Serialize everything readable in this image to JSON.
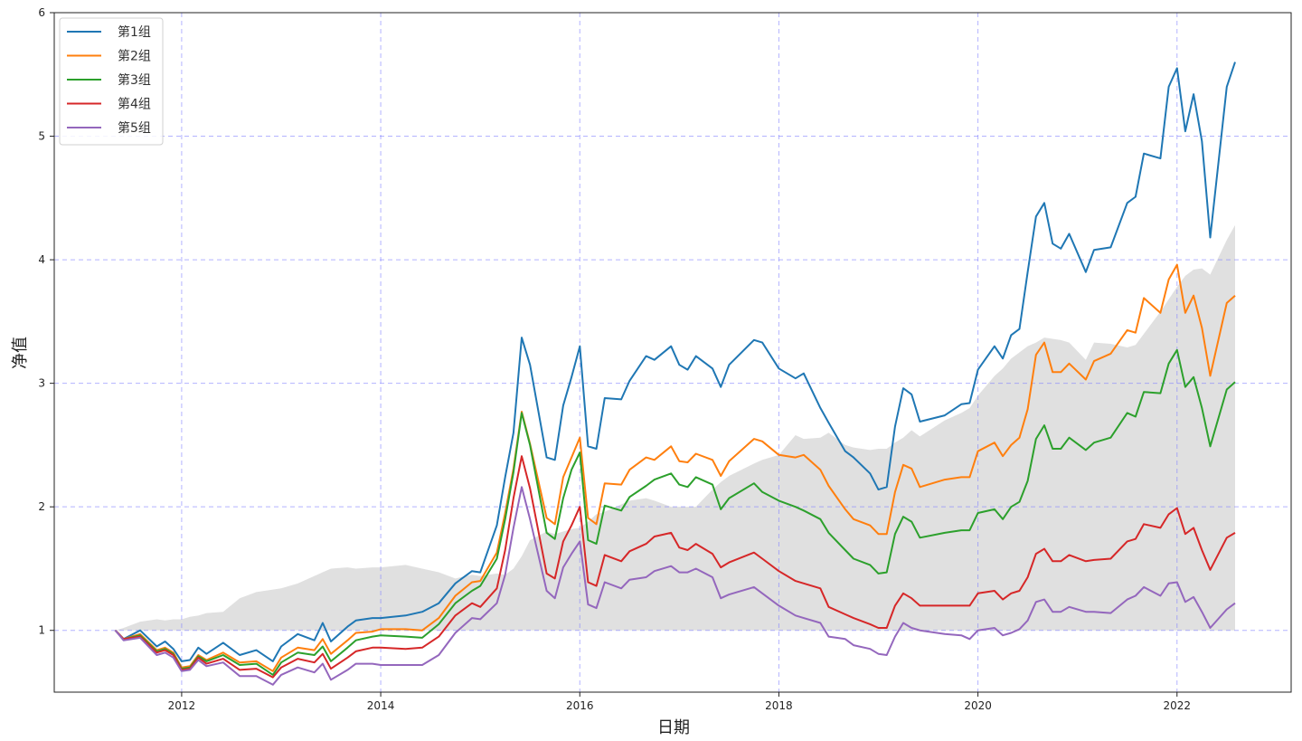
{
  "chart_data": {
    "type": "line",
    "title": "",
    "xlabel": "日期",
    "ylabel": "净值",
    "xlim": [
      "2010-10",
      "2023-03"
    ],
    "ylim": [
      0.5,
      6
    ],
    "x_ticks": [
      "2012",
      "2014",
      "2016",
      "2018",
      "2020",
      "2022"
    ],
    "y_ticks": [
      "1",
      "2",
      "3",
      "4",
      "5",
      "6"
    ],
    "grid": true,
    "grid_color": "#8080ff",
    "legend_placement": "top-left",
    "x": [
      "2011-05",
      "2011-06",
      "2011-08",
      "2011-10",
      "2011-11",
      "2011-12",
      "2012-01",
      "2012-02",
      "2012-03",
      "2012-04",
      "2012-06",
      "2012-08",
      "2012-10",
      "2012-12",
      "2013-01",
      "2013-03",
      "2013-05",
      "2013-06",
      "2013-07",
      "2013-09",
      "2013-10",
      "2013-12",
      "2014-01",
      "2014-04",
      "2014-06",
      "2014-08",
      "2014-10",
      "2014-12",
      "2015-01",
      "2015-03",
      "2015-04",
      "2015-05",
      "2015-06",
      "2015-07",
      "2015-09",
      "2015-10",
      "2015-11",
      "2015-12",
      "2016-01",
      "2016-02",
      "2016-03",
      "2016-04",
      "2016-06",
      "2016-07",
      "2016-09",
      "2016-10",
      "2016-12",
      "2017-01",
      "2017-02",
      "2017-03",
      "2017-05",
      "2017-06",
      "2017-07",
      "2017-10",
      "2017-11",
      "2018-01",
      "2018-03",
      "2018-04",
      "2018-06",
      "2018-07",
      "2018-09",
      "2018-10",
      "2018-12",
      "2019-01",
      "2019-02",
      "2019-03",
      "2019-04",
      "2019-05",
      "2019-06",
      "2019-09",
      "2019-11",
      "2019-12",
      "2020-01",
      "2020-03",
      "2020-04",
      "2020-05",
      "2020-06",
      "2020-07",
      "2020-08",
      "2020-09",
      "2020-10",
      "2020-11",
      "2020-12",
      "2021-02",
      "2021-03",
      "2021-05",
      "2021-07",
      "2021-08",
      "2021-09",
      "2021-11",
      "2021-12",
      "2022-01",
      "2022-02",
      "2022-03",
      "2022-04",
      "2022-05",
      "2022-07",
      "2022-08"
    ],
    "shaded_area": {
      "color": "#e0e0e0",
      "baseline": 1,
      "values": [
        1.0,
        1.02,
        1.07,
        1.09,
        1.08,
        1.09,
        1.09,
        1.11,
        1.12,
        1.14,
        1.15,
        1.26,
        1.31,
        1.33,
        1.34,
        1.38,
        1.44,
        1.47,
        1.5,
        1.51,
        1.5,
        1.51,
        1.51,
        1.53,
        1.5,
        1.47,
        1.42,
        1.45,
        1.44,
        1.46,
        1.45,
        1.5,
        1.6,
        1.73,
        1.8,
        1.78,
        1.8,
        1.82,
        1.83,
        1.88,
        1.94,
        1.96,
        2.02,
        2.05,
        2.07,
        2.05,
        2.0,
        2.0,
        2.0,
        2.0,
        2.14,
        2.2,
        2.25,
        2.35,
        2.38,
        2.42,
        2.58,
        2.55,
        2.56,
        2.6,
        2.5,
        2.48,
        2.46,
        2.47,
        2.47,
        2.52,
        2.56,
        2.62,
        2.57,
        2.7,
        2.76,
        2.8,
        2.9,
        3.06,
        3.12,
        3.2,
        3.25,
        3.3,
        3.33,
        3.37,
        3.36,
        3.35,
        3.33,
        3.19,
        3.33,
        3.32,
        3.29,
        3.31,
        3.4,
        3.58,
        3.68,
        3.78,
        3.87,
        3.92,
        3.93,
        3.88,
        4.16,
        4.28
      ]
    },
    "series": [
      {
        "name": "第1组",
        "color": "#1f77b4",
        "values": [
          1.0,
          0.93,
          1.0,
          0.87,
          0.91,
          0.85,
          0.75,
          0.76,
          0.86,
          0.81,
          0.9,
          0.8,
          0.84,
          0.75,
          0.87,
          0.97,
          0.92,
          1.06,
          0.91,
          1.03,
          1.08,
          1.1,
          1.1,
          1.12,
          1.15,
          1.22,
          1.38,
          1.48,
          1.47,
          1.85,
          2.24,
          2.6,
          3.37,
          3.15,
          2.4,
          2.38,
          2.82,
          3.05,
          3.3,
          2.49,
          2.47,
          2.88,
          2.87,
          3.02,
          3.22,
          3.19,
          3.3,
          3.15,
          3.11,
          3.22,
          3.12,
          2.97,
          3.15,
          3.35,
          3.33,
          3.12,
          3.04,
          3.08,
          2.8,
          2.68,
          2.45,
          2.4,
          2.27,
          2.14,
          2.16,
          2.65,
          2.96,
          2.91,
          2.69,
          2.74,
          2.83,
          2.84,
          3.11,
          3.3,
          3.2,
          3.39,
          3.44,
          3.9,
          4.35,
          4.46,
          4.13,
          4.09,
          4.21,
          3.9,
          4.08,
          4.1,
          4.46,
          4.51,
          4.86,
          4.82,
          5.4,
          5.55,
          5.04,
          5.34,
          4.96,
          4.18,
          5.4,
          5.6
        ]
      },
      {
        "name": "第2组",
        "color": "#ff7f0e",
        "values": [
          1.0,
          0.93,
          0.97,
          0.84,
          0.86,
          0.82,
          0.7,
          0.71,
          0.8,
          0.76,
          0.82,
          0.74,
          0.75,
          0.67,
          0.78,
          0.86,
          0.84,
          0.93,
          0.81,
          0.92,
          0.98,
          0.99,
          1.01,
          1.01,
          1.0,
          1.1,
          1.28,
          1.39,
          1.4,
          1.63,
          1.95,
          2.31,
          2.77,
          2.51,
          1.91,
          1.86,
          2.24,
          2.4,
          2.56,
          1.91,
          1.86,
          2.19,
          2.18,
          2.3,
          2.4,
          2.38,
          2.49,
          2.37,
          2.36,
          2.43,
          2.38,
          2.25,
          2.37,
          2.55,
          2.53,
          2.42,
          2.4,
          2.42,
          2.3,
          2.17,
          1.98,
          1.9,
          1.85,
          1.78,
          1.78,
          2.12,
          2.34,
          2.31,
          2.16,
          2.22,
          2.24,
          2.24,
          2.45,
          2.52,
          2.41,
          2.5,
          2.56,
          2.79,
          3.23,
          3.33,
          3.09,
          3.09,
          3.16,
          3.03,
          3.18,
          3.24,
          3.43,
          3.41,
          3.69,
          3.57,
          3.84,
          3.96,
          3.57,
          3.71,
          3.45,
          3.06,
          3.65,
          3.71
        ]
      },
      {
        "name": "第3组",
        "color": "#2ca02c",
        "values": [
          1.0,
          0.93,
          0.96,
          0.83,
          0.85,
          0.81,
          0.69,
          0.7,
          0.79,
          0.75,
          0.8,
          0.72,
          0.73,
          0.64,
          0.74,
          0.82,
          0.8,
          0.87,
          0.75,
          0.86,
          0.92,
          0.95,
          0.96,
          0.95,
          0.94,
          1.05,
          1.22,
          1.32,
          1.36,
          1.58,
          1.9,
          2.28,
          2.76,
          2.5,
          1.79,
          1.74,
          2.07,
          2.3,
          2.44,
          1.73,
          1.7,
          2.01,
          1.97,
          2.08,
          2.17,
          2.22,
          2.27,
          2.18,
          2.16,
          2.24,
          2.18,
          1.98,
          2.07,
          2.19,
          2.12,
          2.05,
          2.0,
          1.97,
          1.9,
          1.79,
          1.65,
          1.58,
          1.53,
          1.46,
          1.47,
          1.78,
          1.92,
          1.88,
          1.75,
          1.79,
          1.81,
          1.81,
          1.95,
          1.98,
          1.9,
          2.0,
          2.04,
          2.21,
          2.55,
          2.66,
          2.47,
          2.47,
          2.56,
          2.46,
          2.52,
          2.56,
          2.76,
          2.73,
          2.93,
          2.92,
          3.16,
          3.27,
          2.97,
          3.05,
          2.8,
          2.49,
          2.95,
          3.01
        ]
      },
      {
        "name": "第4组",
        "color": "#d62728",
        "values": [
          1.0,
          0.93,
          0.95,
          0.82,
          0.84,
          0.8,
          0.68,
          0.69,
          0.78,
          0.73,
          0.77,
          0.68,
          0.69,
          0.62,
          0.7,
          0.77,
          0.74,
          0.81,
          0.69,
          0.78,
          0.83,
          0.86,
          0.86,
          0.85,
          0.86,
          0.95,
          1.12,
          1.22,
          1.19,
          1.34,
          1.65,
          2.07,
          2.41,
          2.15,
          1.46,
          1.42,
          1.72,
          1.85,
          2.0,
          1.39,
          1.36,
          1.61,
          1.56,
          1.64,
          1.7,
          1.76,
          1.79,
          1.67,
          1.65,
          1.7,
          1.62,
          1.51,
          1.55,
          1.63,
          1.58,
          1.48,
          1.4,
          1.38,
          1.34,
          1.19,
          1.13,
          1.1,
          1.05,
          1.02,
          1.02,
          1.2,
          1.3,
          1.26,
          1.2,
          1.2,
          1.2,
          1.2,
          1.3,
          1.32,
          1.25,
          1.3,
          1.32,
          1.43,
          1.62,
          1.66,
          1.56,
          1.56,
          1.61,
          1.56,
          1.57,
          1.58,
          1.72,
          1.74,
          1.86,
          1.83,
          1.94,
          1.99,
          1.78,
          1.83,
          1.65,
          1.49,
          1.75,
          1.79
        ]
      },
      {
        "name": "第5组",
        "color": "#9467bd",
        "values": [
          1.0,
          0.92,
          0.94,
          0.8,
          0.82,
          0.78,
          0.67,
          0.68,
          0.76,
          0.71,
          0.74,
          0.63,
          0.63,
          0.56,
          0.64,
          0.7,
          0.66,
          0.73,
          0.6,
          0.68,
          0.73,
          0.73,
          0.72,
          0.72,
          0.72,
          0.8,
          0.98,
          1.1,
          1.09,
          1.22,
          1.45,
          1.83,
          2.16,
          1.9,
          1.32,
          1.26,
          1.51,
          1.62,
          1.72,
          1.21,
          1.18,
          1.39,
          1.34,
          1.41,
          1.43,
          1.48,
          1.52,
          1.47,
          1.47,
          1.5,
          1.43,
          1.26,
          1.29,
          1.35,
          1.3,
          1.2,
          1.12,
          1.1,
          1.06,
          0.95,
          0.93,
          0.88,
          0.85,
          0.81,
          0.8,
          0.95,
          1.06,
          1.02,
          1.0,
          0.97,
          0.96,
          0.93,
          1.0,
          1.02,
          0.96,
          0.98,
          1.01,
          1.08,
          1.23,
          1.25,
          1.15,
          1.15,
          1.19,
          1.15,
          1.15,
          1.14,
          1.25,
          1.28,
          1.35,
          1.28,
          1.38,
          1.39,
          1.23,
          1.27,
          1.15,
          1.02,
          1.17,
          1.22
        ]
      }
    ]
  }
}
